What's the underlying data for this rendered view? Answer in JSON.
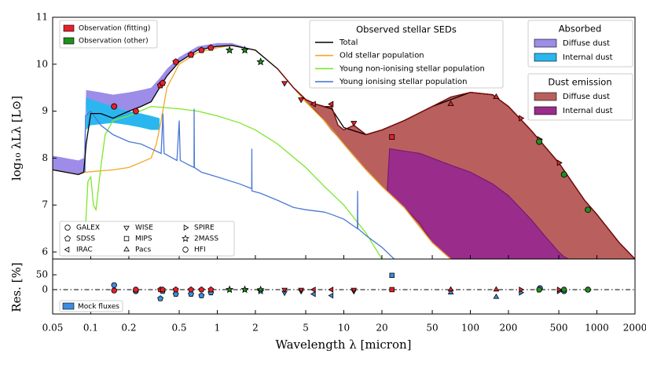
{
  "chart_data": [
    {
      "type": "line",
      "ylabel": "log₁₀ λLλ [L⊙]",
      "log_x": true,
      "xlim": [
        0.05,
        2000
      ],
      "ylim": [
        5.85,
        11
      ],
      "yticks": [
        6,
        7,
        8,
        9,
        10,
        11
      ],
      "legend_title": "Observed stellar SEDs",
      "series": [
        {
          "name": "Total",
          "color": "#000000",
          "x": [
            0.05,
            0.08,
            0.088,
            0.092,
            0.1,
            0.12,
            0.15,
            0.2,
            0.25,
            0.3,
            0.35,
            0.4,
            0.5,
            0.7,
            1,
            1.3,
            2,
            3,
            4,
            5,
            6,
            8,
            10,
            15,
            20,
            30,
            50,
            100,
            150,
            200,
            300,
            500,
            800,
            1000,
            1500,
            2000
          ],
          "values": [
            7.75,
            7.65,
            7.7,
            8.3,
            8.95,
            8.95,
            8.85,
            9.0,
            9.1,
            9.2,
            9.5,
            9.75,
            10.05,
            10.3,
            10.38,
            10.4,
            10.3,
            9.9,
            9.5,
            9.25,
            9.15,
            9.05,
            8.65,
            8.5,
            8.6,
            8.8,
            9.1,
            9.4,
            9.35,
            9.1,
            8.6,
            7.9,
            7.1,
            6.8,
            6.2,
            5.85
          ]
        },
        {
          "name": "Old stellar population",
          "color": "#f5a623",
          "x": [
            0.05,
            0.08,
            0.09,
            0.15,
            0.2,
            0.3,
            0.33,
            0.36,
            0.4,
            0.5,
            0.7,
            1,
            1.3,
            2,
            3,
            4,
            5,
            7,
            10,
            15,
            20,
            30,
            50,
            70
          ],
          "values": [
            7.75,
            7.65,
            7.7,
            7.75,
            7.8,
            8.0,
            8.3,
            8.8,
            9.5,
            10.0,
            10.25,
            10.35,
            10.4,
            10.3,
            9.9,
            9.5,
            9.2,
            8.8,
            8.3,
            7.75,
            7.4,
            6.95,
            6.2,
            5.85
          ]
        },
        {
          "name": "Young non-ionising stellar population",
          "color": "#7de82a",
          "x": [
            0.09,
            0.095,
            0.1,
            0.105,
            0.11,
            0.12,
            0.13,
            0.15,
            0.2,
            0.3,
            0.5,
            0.7,
            1,
            1.5,
            2,
            3,
            5,
            7,
            10,
            15,
            20
          ],
          "values": [
            6.3,
            7.5,
            7.6,
            7.0,
            6.9,
            7.8,
            8.5,
            8.8,
            8.9,
            9.1,
            9.05,
            9.0,
            8.9,
            8.75,
            8.6,
            8.3,
            7.8,
            7.4,
            7.0,
            6.4,
            5.85
          ]
        },
        {
          "name": "Young ionising stellar population",
          "color": "#4a78d6",
          "x": [
            0.09,
            0.091,
            0.1,
            0.12,
            0.15,
            0.2,
            0.25,
            0.3,
            0.36,
            0.372,
            0.38,
            0.48,
            0.5,
            0.51,
            0.6,
            0.655,
            0.656,
            0.66,
            0.75,
            1.0,
            1.5,
            1.87,
            1.875,
            1.88,
            2.2,
            3,
            4,
            5,
            7,
            8,
            10,
            12,
            12.8,
            12.85,
            12.9,
            15,
            20,
            25
          ],
          "values": [
            7.7,
            8.9,
            9.0,
            8.7,
            8.5,
            8.35,
            8.3,
            8.2,
            8.1,
            8.95,
            8.1,
            7.95,
            8.8,
            7.95,
            7.85,
            7.8,
            9.05,
            7.8,
            7.7,
            7.6,
            7.45,
            7.35,
            8.2,
            7.3,
            7.25,
            7.1,
            6.95,
            6.9,
            6.85,
            6.8,
            6.7,
            6.55,
            6.5,
            7.3,
            6.5,
            6.35,
            6.1,
            5.85
          ]
        }
      ],
      "absorbed": {
        "title": "Absorbed",
        "areas": [
          {
            "name": "Diffuse dust",
            "color": "#9d8ce8",
            "x": [
              0.05,
              0.08,
              0.088,
              0.092,
              0.12,
              0.15,
              0.2,
              0.25,
              0.3,
              0.35,
              0.4,
              0.5,
              0.7,
              1,
              1.3,
              2
            ],
            "upper": [
              8.05,
              7.95,
              8.0,
              9.45,
              9.4,
              9.35,
              9.4,
              9.45,
              9.5,
              9.7,
              9.9,
              10.15,
              10.38,
              10.45,
              10.45,
              10.3
            ],
            "lower": [
              7.75,
              7.65,
              7.7,
              9.15,
              9.15,
              9.1,
              9.0,
              9.1,
              9.2,
              9.5,
              9.75,
              10.05,
              10.3,
              10.38,
              10.4,
              10.3
            ]
          },
          {
            "name": "Internal dust",
            "color": "#2ab7f0",
            "x": [
              0.092,
              0.1,
              0.15,
              0.2,
              0.25,
              0.3,
              0.35
            ],
            "upper": [
              9.3,
              9.25,
              9.1,
              9.0,
              8.95,
              8.9,
              8.85
            ],
            "lower": [
              8.6,
              8.7,
              8.75,
              8.7,
              8.65,
              8.6,
              8.6
            ]
          }
        ]
      },
      "dust_emission": {
        "title": "Dust emission",
        "areas": [
          {
            "name": "Diffuse dust",
            "color": "#b9605e",
            "edge": "#7b0d0d",
            "x": [
              3,
              4,
              5,
              6,
              7,
              8,
              9,
              10,
              12,
              15,
              20,
              30,
              50,
              70,
              100,
              150,
              200,
              300,
              500,
              800,
              1000,
              1500,
              2000
            ],
            "upper": [
              9.9,
              9.5,
              9.25,
              9.15,
              9.1,
              9.1,
              8.7,
              8.6,
              8.7,
              8.5,
              8.6,
              8.8,
              9.1,
              9.3,
              9.4,
              9.35,
              9.1,
              8.6,
              7.9,
              7.1,
              6.8,
              6.2,
              5.85
            ],
            "lower": [
              9.9,
              9.5,
              9.2,
              9.0,
              8.8,
              8.6,
              8.45,
              8.3,
              8.05,
              7.75,
              7.4,
              6.95,
              6.2,
              5.85,
              5.85,
              5.85,
              5.85,
              5.85,
              5.85,
              5.85,
              5.85,
              5.85,
              5.85
            ]
          },
          {
            "name": "Internal dust",
            "color": "#9a2c8c",
            "edge": "#7a1a70",
            "x": [
              22,
              23,
              30,
              40,
              50,
              70,
              100,
              150,
              200,
              300,
              400,
              500,
              550,
              600
            ],
            "upper": [
              7.3,
              8.2,
              8.15,
              8.1,
              8.0,
              7.85,
              7.7,
              7.45,
              7.2,
              6.7,
              6.3,
              6.0,
              5.9,
              5.85
            ],
            "lower": [
              7.3,
              7.25,
              6.95,
              6.6,
              6.2,
              5.85,
              5.85,
              5.85,
              5.85,
              5.85,
              5.85,
              5.85,
              5.85,
              5.85
            ]
          }
        ]
      },
      "observations": [
        {
          "name": "Observation (fitting)",
          "color": "#e8202a",
          "x": [
            0.153,
            0.227,
            0.355,
            0.37,
            0.47,
            0.62,
            0.75,
            0.89,
            3.4,
            4.6,
            5.8,
            8.0,
            12,
            24,
            70,
            160,
            250,
            350,
            500
          ],
          "values": [
            9.1,
            9.0,
            9.55,
            9.6,
            10.05,
            10.2,
            10.3,
            10.35,
            9.6,
            9.25,
            9.15,
            9.15,
            8.75,
            8.45,
            9.15,
            9.3,
            8.85,
            8.4,
            7.9
          ],
          "markers": [
            "o",
            "o",
            "p",
            "p",
            "p",
            "p",
            "p",
            "p",
            "v",
            "v",
            "<",
            "<",
            "v",
            "s",
            "^",
            "^",
            ">",
            ">",
            ">"
          ]
        },
        {
          "name": "Observation (other)",
          "color": "#1f8f1f",
          "x": [
            1.25,
            1.65,
            2.2,
            350,
            550,
            850
          ],
          "values": [
            10.3,
            10.3,
            10.05,
            8.35,
            7.65,
            6.9
          ],
          "markers": [
            "*",
            "*",
            "*",
            "o",
            "o",
            "o"
          ]
        }
      ],
      "marker_legend": [
        {
          "name": "GALEX",
          "marker": "o"
        },
        {
          "name": "SDSS",
          "marker": "p"
        },
        {
          "name": "IRAC",
          "marker": "<"
        },
        {
          "name": "WISE",
          "marker": "v"
        },
        {
          "name": "MIPS",
          "marker": "s"
        },
        {
          "name": "Pacs",
          "marker": "^"
        },
        {
          "name": "SPIRE",
          "marker": ">"
        },
        {
          "name": "2MASS",
          "marker": "*"
        },
        {
          "name": "HFI",
          "marker": "o"
        }
      ]
    },
    {
      "type": "scatter",
      "xlabel": "Wavelength λ [micron]",
      "ylabel": "Res. [%]",
      "log_x": true,
      "xlim": [
        0.05,
        2000
      ],
      "xticks": [
        0.05,
        0.1,
        0.2,
        0.5,
        1,
        2,
        5,
        10,
        20,
        50,
        100,
        200,
        500,
        1000,
        2000
      ],
      "ylim": [
        -82,
        103
      ],
      "yticks": [
        0,
        50
      ],
      "series": [
        {
          "name": "Mock fluxes",
          "color": "#3b8de0",
          "x": [
            0.153,
            0.227,
            0.355,
            0.37,
            0.47,
            0.62,
            0.75,
            0.89,
            3.4,
            4.6,
            5.8,
            8.0,
            12,
            24,
            70,
            160,
            250,
            350,
            500,
            1.25,
            1.65,
            2.2,
            355,
            550,
            850
          ],
          "values": [
            15,
            -5,
            -30,
            -5,
            -15,
            -15,
            -20,
            -10,
            -10,
            -5,
            -15,
            -20,
            -5,
            48,
            -10,
            -25,
            -10,
            0,
            -5,
            0,
            0,
            -5,
            5,
            -5,
            0
          ],
          "markers": [
            "o",
            "o",
            "p",
            "p",
            "p",
            "p",
            "p",
            "p",
            "v",
            "v",
            "<",
            "<",
            "v",
            "s",
            "^",
            "^",
            ">",
            ">",
            ">",
            "*",
            "*",
            "*",
            "o",
            "o",
            "o"
          ]
        }
      ],
      "points": [
        {
          "color": "#e8202a",
          "x": [
            0.153,
            0.227,
            0.355,
            0.37,
            0.47,
            0.62,
            0.75,
            0.89,
            3.4,
            4.6,
            5.8,
            8.0,
            12,
            24,
            70,
            160,
            250,
            350,
            500
          ],
          "values": [
            -3,
            0,
            0,
            0,
            0,
            0,
            0,
            0,
            0,
            0,
            0,
            0,
            0,
            0,
            0,
            0,
            0,
            0,
            0
          ],
          "markers": [
            "o",
            "o",
            "p",
            "p",
            "p",
            "p",
            "p",
            "p",
            "v",
            "v",
            "<",
            "<",
            "v",
            "s",
            "^",
            "^",
            ">",
            ">",
            ">"
          ]
        },
        {
          "color": "#1f8f1f",
          "x": [
            1.25,
            1.65,
            2.2,
            350,
            550,
            850
          ],
          "values": [
            0,
            0,
            0,
            0,
            0,
            0
          ],
          "markers": [
            "*",
            "*",
            "*",
            "o",
            "o",
            "o"
          ]
        }
      ]
    }
  ]
}
